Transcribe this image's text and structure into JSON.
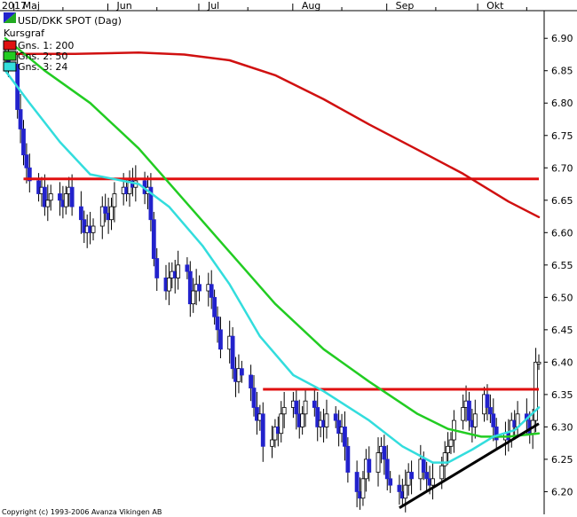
{
  "header": {
    "year_label": "2017",
    "instrument": "USD/DKK SPOT (Dag)",
    "subtitle": "Kursgraf"
  },
  "legend": [
    {
      "label": "Gns. 1: 200",
      "color": "#e01010"
    },
    {
      "label": "Gns. 2: 50",
      "color": "#22cc22"
    },
    {
      "label": "Gns. 3: 24",
      "color": "#33dddd"
    }
  ],
  "copyright": "Copyright (c) 1993-2006 Avanza Vikingen AB",
  "colors": {
    "candle_up": "#ffffff",
    "candle_down": "#2222cc",
    "candle_outline": "#000000",
    "resistance": "#e01010",
    "support": "#000000",
    "ma200": "#d01010",
    "ma50": "#22cc22",
    "ma24": "#33dddd"
  },
  "chart_data": {
    "type": "candlestick",
    "x_tick_labels": [
      "Maj",
      "Jun",
      "Jul",
      "Aug",
      "Sep",
      "Okt"
    ],
    "y_tick_labels": [
      "6.90",
      "6.85",
      "6.80",
      "6.75",
      "6.70",
      "6.65",
      "6.60",
      "6.55",
      "6.50",
      "6.45",
      "6.40",
      "6.35",
      "6.30",
      "6.25",
      "6.20"
    ],
    "y_range": [
      6.165,
      6.94
    ],
    "x_range": [
      "2017-04-27",
      "2017-10-20"
    ],
    "grid": false,
    "close_series": [
      [
        "2017-04-27",
        6.87
      ],
      [
        "2017-04-28",
        6.86
      ],
      [
        "2017-05-01",
        6.79
      ],
      [
        "2017-05-02",
        6.76
      ],
      [
        "2017-05-03",
        6.72
      ],
      [
        "2017-05-04",
        6.7
      ],
      [
        "2017-05-05",
        6.68
      ],
      [
        "2017-05-08",
        6.66
      ],
      [
        "2017-05-09",
        6.67
      ],
      [
        "2017-05-10",
        6.64
      ],
      [
        "2017-05-11",
        6.65
      ],
      [
        "2017-05-12",
        6.66
      ],
      [
        "2017-05-15",
        6.65
      ],
      [
        "2017-05-16",
        6.64
      ],
      [
        "2017-05-17",
        6.66
      ],
      [
        "2017-05-18",
        6.67
      ],
      [
        "2017-05-19",
        6.64
      ],
      [
        "2017-05-22",
        6.62
      ],
      [
        "2017-05-23",
        6.6
      ],
      [
        "2017-05-24",
        6.61
      ],
      [
        "2017-05-25",
        6.6
      ],
      [
        "2017-05-26",
        6.61
      ],
      [
        "2017-05-29",
        6.64
      ],
      [
        "2017-05-30",
        6.63
      ],
      [
        "2017-05-31",
        6.62
      ],
      [
        "2017-06-01",
        6.64
      ],
      [
        "2017-06-02",
        6.66
      ],
      [
        "2017-06-05",
        6.67
      ],
      [
        "2017-06-06",
        6.66
      ],
      [
        "2017-06-07",
        6.68
      ],
      [
        "2017-06-08",
        6.67
      ],
      [
        "2017-06-09",
        6.68
      ],
      [
        "2017-06-12",
        6.66
      ],
      [
        "2017-06-13",
        6.67
      ],
      [
        "2017-06-14",
        6.62
      ],
      [
        "2017-06-15",
        6.56
      ],
      [
        "2017-06-16",
        6.53
      ],
      [
        "2017-06-19",
        6.51
      ],
      [
        "2017-06-20",
        6.53
      ],
      [
        "2017-06-21",
        6.54
      ],
      [
        "2017-06-22",
        6.53
      ],
      [
        "2017-06-23",
        6.55
      ],
      [
        "2017-06-26",
        6.54
      ],
      [
        "2017-06-27",
        6.49
      ],
      [
        "2017-06-28",
        6.51
      ],
      [
        "2017-06-29",
        6.52
      ],
      [
        "2017-06-30",
        6.51
      ],
      [
        "2017-07-03",
        6.52
      ],
      [
        "2017-07-04",
        6.5
      ],
      [
        "2017-07-05",
        6.47
      ],
      [
        "2017-07-06",
        6.45
      ],
      [
        "2017-07-07",
        6.42
      ],
      [
        "2017-07-10",
        6.44
      ],
      [
        "2017-07-11",
        6.39
      ],
      [
        "2017-07-12",
        6.37
      ],
      [
        "2017-07-13",
        6.39
      ],
      [
        "2017-07-14",
        6.38
      ],
      [
        "2017-07-17",
        6.36
      ],
      [
        "2017-07-18",
        6.33
      ],
      [
        "2017-07-19",
        6.31
      ],
      [
        "2017-07-20",
        6.32
      ],
      [
        "2017-07-21",
        6.27
      ],
      [
        "2017-07-24",
        6.28
      ],
      [
        "2017-07-25",
        6.3
      ],
      [
        "2017-07-26",
        6.29
      ],
      [
        "2017-07-27",
        6.32
      ],
      [
        "2017-07-28",
        6.33
      ],
      [
        "2017-07-31",
        6.34
      ],
      [
        "2017-08-01",
        6.32
      ],
      [
        "2017-08-02",
        6.3
      ],
      [
        "2017-08-03",
        6.32
      ],
      [
        "2017-08-04",
        6.34
      ],
      [
        "2017-08-07",
        6.33
      ],
      [
        "2017-08-08",
        6.3
      ],
      [
        "2017-08-09",
        6.31
      ],
      [
        "2017-08-10",
        6.3
      ],
      [
        "2017-08-11",
        6.32
      ],
      [
        "2017-08-14",
        6.31
      ],
      [
        "2017-08-15",
        6.29
      ],
      [
        "2017-08-16",
        6.3
      ],
      [
        "2017-08-17",
        6.27
      ],
      [
        "2017-08-18",
        6.23
      ],
      [
        "2017-08-21",
        6.2
      ],
      [
        "2017-08-22",
        6.19
      ],
      [
        "2017-08-23",
        6.22
      ],
      [
        "2017-08-24",
        6.25
      ],
      [
        "2017-08-25",
        6.23
      ],
      [
        "2017-08-28",
        6.26
      ],
      [
        "2017-08-29",
        6.27
      ],
      [
        "2017-08-30",
        6.25
      ],
      [
        "2017-08-31",
        6.22
      ],
      [
        "2017-09-01",
        6.21
      ],
      [
        "2017-09-04",
        6.2
      ],
      [
        "2017-09-05",
        6.19
      ],
      [
        "2017-09-06",
        6.21
      ],
      [
        "2017-09-07",
        6.23
      ],
      [
        "2017-09-08",
        6.22
      ],
      [
        "2017-09-11",
        6.25
      ],
      [
        "2017-09-12",
        6.23
      ],
      [
        "2017-09-13",
        6.22
      ],
      [
        "2017-09-14",
        6.21
      ],
      [
        "2017-09-15",
        6.22
      ],
      [
        "2017-09-18",
        6.24
      ],
      [
        "2017-09-19",
        6.26
      ],
      [
        "2017-09-20",
        6.27
      ],
      [
        "2017-09-21",
        6.28
      ],
      [
        "2017-09-22",
        6.31
      ],
      [
        "2017-09-25",
        6.33
      ],
      [
        "2017-09-26",
        6.34
      ],
      [
        "2017-09-27",
        6.31
      ],
      [
        "2017-09-28",
        6.3
      ],
      [
        "2017-09-29",
        6.32
      ],
      [
        "2017-10-02",
        6.35
      ],
      [
        "2017-10-03",
        6.33
      ],
      [
        "2017-10-04",
        6.32
      ],
      [
        "2017-10-05",
        6.3
      ],
      [
        "2017-10-06",
        6.28
      ],
      [
        "2017-10-09",
        6.29
      ],
      [
        "2017-10-10",
        6.28
      ],
      [
        "2017-10-11",
        6.31
      ],
      [
        "2017-10-12",
        6.3
      ],
      [
        "2017-10-13",
        6.32
      ],
      [
        "2017-10-16",
        6.31
      ],
      [
        "2017-10-17",
        6.29
      ],
      [
        "2017-10-18",
        6.31
      ],
      [
        "2017-10-19",
        6.4
      ],
      [
        "2017-10-20",
        6.4
      ]
    ],
    "moving_averages": [
      {
        "name": "Gns. 1: 200",
        "color": "#d01010",
        "points": [
          [
            "2017-04-27",
            6.876
          ],
          [
            "2017-05-20",
            6.876
          ],
          [
            "2017-06-10",
            6.878
          ],
          [
            "2017-06-25",
            6.875
          ],
          [
            "2017-07-10",
            6.866
          ],
          [
            "2017-07-25",
            6.843
          ],
          [
            "2017-08-10",
            6.806
          ],
          [
            "2017-08-25",
            6.767
          ],
          [
            "2017-09-10",
            6.728
          ],
          [
            "2017-09-25",
            6.691
          ],
          [
            "2017-10-10",
            6.648
          ],
          [
            "2017-10-20",
            6.624
          ]
        ]
      },
      {
        "name": "Gns. 2: 50",
        "color": "#22cc22",
        "points": [
          [
            "2017-04-27",
            6.9
          ],
          [
            "2017-05-10",
            6.85
          ],
          [
            "2017-05-25",
            6.8
          ],
          [
            "2017-06-10",
            6.73
          ],
          [
            "2017-06-25",
            6.65
          ],
          [
            "2017-07-10",
            6.57
          ],
          [
            "2017-07-25",
            6.49
          ],
          [
            "2017-08-10",
            6.42
          ],
          [
            "2017-08-25",
            6.37
          ],
          [
            "2017-09-10",
            6.32
          ],
          [
            "2017-09-20",
            6.297
          ],
          [
            "2017-10-01",
            6.285
          ],
          [
            "2017-10-10",
            6.285
          ],
          [
            "2017-10-20",
            6.29
          ]
        ]
      },
      {
        "name": "Gns. 3: 24",
        "color": "#33dddd",
        "points": [
          [
            "2017-04-27",
            6.85
          ],
          [
            "2017-05-05",
            6.8
          ],
          [
            "2017-05-15",
            6.74
          ],
          [
            "2017-05-25",
            6.69
          ],
          [
            "2017-06-10",
            6.675
          ],
          [
            "2017-06-20",
            6.64
          ],
          [
            "2017-07-01",
            6.58
          ],
          [
            "2017-07-10",
            6.52
          ],
          [
            "2017-07-20",
            6.44
          ],
          [
            "2017-07-31",
            6.38
          ],
          [
            "2017-08-10",
            6.355
          ],
          [
            "2017-08-25",
            6.31
          ],
          [
            "2017-09-05",
            6.27
          ],
          [
            "2017-09-15",
            6.245
          ],
          [
            "2017-09-20",
            6.245
          ],
          [
            "2017-09-28",
            6.265
          ],
          [
            "2017-10-05",
            6.285
          ],
          [
            "2017-10-12",
            6.295
          ],
          [
            "2017-10-20",
            6.33
          ]
        ]
      }
    ],
    "horizontal_lines": [
      {
        "from": "2017-05-03",
        "to": "2017-10-20",
        "value": 6.683,
        "color": "#e01010"
      },
      {
        "from": "2017-07-21",
        "to": "2017-10-20",
        "value": 6.358,
        "color": "#e01010"
      }
    ],
    "trend_lines": [
      {
        "from": [
          "2017-09-04",
          6.175
        ],
        "to": [
          "2017-10-20",
          6.305
        ],
        "color": "#000000"
      }
    ]
  }
}
